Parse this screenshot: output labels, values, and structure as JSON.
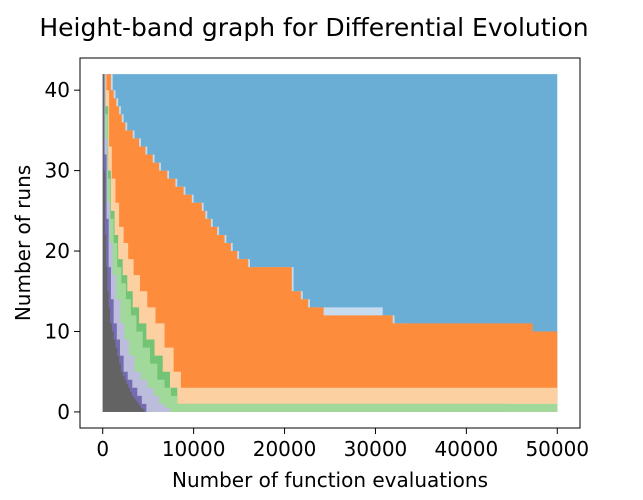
{
  "chart_data": {
    "type": "area",
    "title": "Height-band graph for Differential Evolution",
    "xlabel": "Number of function evaluations",
    "ylabel": "Number of runs",
    "xlim": [
      -2500,
      52500
    ],
    "ylim": [
      -2,
      44
    ],
    "xticks": [
      0,
      10000,
      20000,
      30000,
      40000,
      50000
    ],
    "yticks": [
      0,
      10,
      20,
      30,
      40
    ],
    "total_runs": 42,
    "grid": false,
    "legend": "none",
    "bands": [
      {
        "color": "#6aaed6",
        "upper": {
          "x": [
            0,
            50000
          ],
          "y": [
            42,
            42
          ]
        }
      },
      {
        "color": "#c6dbef",
        "upper": {
          "x": [
            0,
            800,
            1100,
            1400,
            1700,
            2000,
            2300,
            2700,
            3500,
            4200,
            4900,
            5700,
            6400,
            7300,
            8200,
            9100,
            10000,
            11100,
            11500,
            12100,
            12800,
            13600,
            14300,
            15000,
            16200,
            20000,
            21000,
            22000,
            22800,
            23500,
            24500,
            25800,
            27100,
            28300,
            29500,
            30800,
            32100,
            33500,
            35000,
            37000,
            40000,
            42000,
            46000,
            47500,
            48500,
            49500,
            50000
          ],
          "y": [
            42,
            42,
            40,
            39,
            38,
            37,
            36,
            35,
            34,
            33,
            32,
            31,
            30,
            29,
            28,
            27,
            26,
            25,
            24,
            23,
            22,
            21,
            20,
            19,
            18,
            18,
            15,
            14,
            13,
            13,
            13,
            13,
            13,
            13,
            13,
            12,
            11,
            10,
            10,
            10,
            10,
            10,
            10,
            9,
            8,
            7,
            7
          ]
        }
      },
      {
        "color": "#fd8d3c",
        "upper": {
          "x": [
            0,
            500,
            900,
            1200,
            1500,
            1800,
            2100,
            2500,
            3300,
            4000,
            4700,
            5500,
            6200,
            7100,
            8000,
            8900,
            9800,
            10900,
            11300,
            11900,
            12600,
            13400,
            14100,
            14800,
            16000,
            19800,
            20800,
            21800,
            22600,
            23300,
            24300,
            25600,
            26900,
            28100,
            29300,
            30600,
            31900,
            33300,
            34800,
            36800,
            39800,
            41800,
            45800,
            47300,
            48300,
            49300,
            50000
          ],
          "y": [
            42,
            42,
            40,
            39,
            38,
            37,
            36,
            35,
            34,
            33,
            32,
            31,
            30,
            29,
            28,
            27,
            26,
            25,
            24,
            23,
            22,
            21,
            20,
            19,
            18,
            18,
            15,
            14,
            13,
            13,
            12,
            12,
            12,
            12,
            12,
            12,
            11,
            11,
            11,
            11,
            11,
            11,
            11,
            10,
            10,
            10,
            10
          ]
        }
      },
      {
        "color": "#fdd0a2",
        "upper": {
          "x": [
            0,
            400,
            700,
            1000,
            1400,
            1800,
            2300,
            2800,
            3400,
            4100,
            4900,
            5800,
            6800,
            7800,
            8600,
            50000
          ],
          "y": [
            42,
            40,
            33,
            29,
            26,
            23,
            21,
            19,
            17,
            15,
            13,
            11,
            8,
            5,
            3,
            3
          ]
        }
      },
      {
        "color": "#74c476",
        "upper": {
          "x": [
            0,
            300,
            600,
            900,
            1300,
            1700,
            2200,
            2700,
            3300,
            4000,
            4800,
            5700,
            6600,
            7400,
            8200,
            44300,
            44300,
            50000
          ],
          "y": [
            42,
            38,
            30,
            25,
            22,
            19,
            17,
            15,
            13,
            11,
            9,
            7,
            5,
            3,
            1,
            1,
            0,
            0
          ]
        }
      },
      {
        "color": "#a1d99b",
        "upper": {
          "x": [
            0,
            280,
            560,
            850,
            1200,
            1600,
            2050,
            2550,
            3100,
            3700,
            4400,
            5200,
            6000,
            6800,
            7500,
            8200,
            50000
          ],
          "y": [
            42,
            37,
            29,
            24,
            21,
            18,
            16,
            14,
            12,
            10,
            8,
            6,
            4,
            3,
            2,
            1,
            1
          ]
        }
      },
      {
        "color": "#bcbddc",
        "upper": {
          "x": [
            0,
            250,
            500,
            800,
            1100,
            1500,
            1950,
            2400,
            2900,
            3500,
            4200,
            4900,
            5600,
            6200,
            6800,
            7400,
            50000
          ],
          "y": [
            42,
            34,
            26,
            21,
            17,
            14,
            11,
            9,
            7,
            5,
            4,
            3,
            2,
            1,
            0.5,
            0,
            0
          ]
        }
      },
      {
        "color": "#756bb1",
        "upper": {
          "x": [
            0,
            200,
            420,
            650,
            900,
            1200,
            1550,
            1900,
            2300,
            2750,
            3250,
            3800,
            4300,
            4800,
            50000
          ],
          "y": [
            42,
            32,
            24,
            18,
            14,
            11,
            9,
            7,
            5,
            4,
            3,
            2,
            1,
            0,
            0
          ]
        }
      },
      {
        "color": "#636363",
        "upper": {
          "x": [
            0,
            120,
            250,
            380,
            500,
            650,
            800,
            1000,
            1200,
            1400,
            1600,
            1800,
            2000,
            2200,
            2400,
            2600,
            2800,
            3000,
            3200,
            3400,
            3600,
            3800,
            4000,
            4200,
            4400,
            4600,
            50000
          ],
          "y": [
            42,
            30,
            22,
            18,
            15,
            13,
            11,
            10,
            9,
            8,
            7,
            6,
            5,
            4.5,
            4,
            3.5,
            3,
            2.5,
            2,
            1.7,
            1.4,
            1.1,
            0.8,
            0.5,
            0.3,
            0,
            0
          ]
        }
      }
    ]
  }
}
